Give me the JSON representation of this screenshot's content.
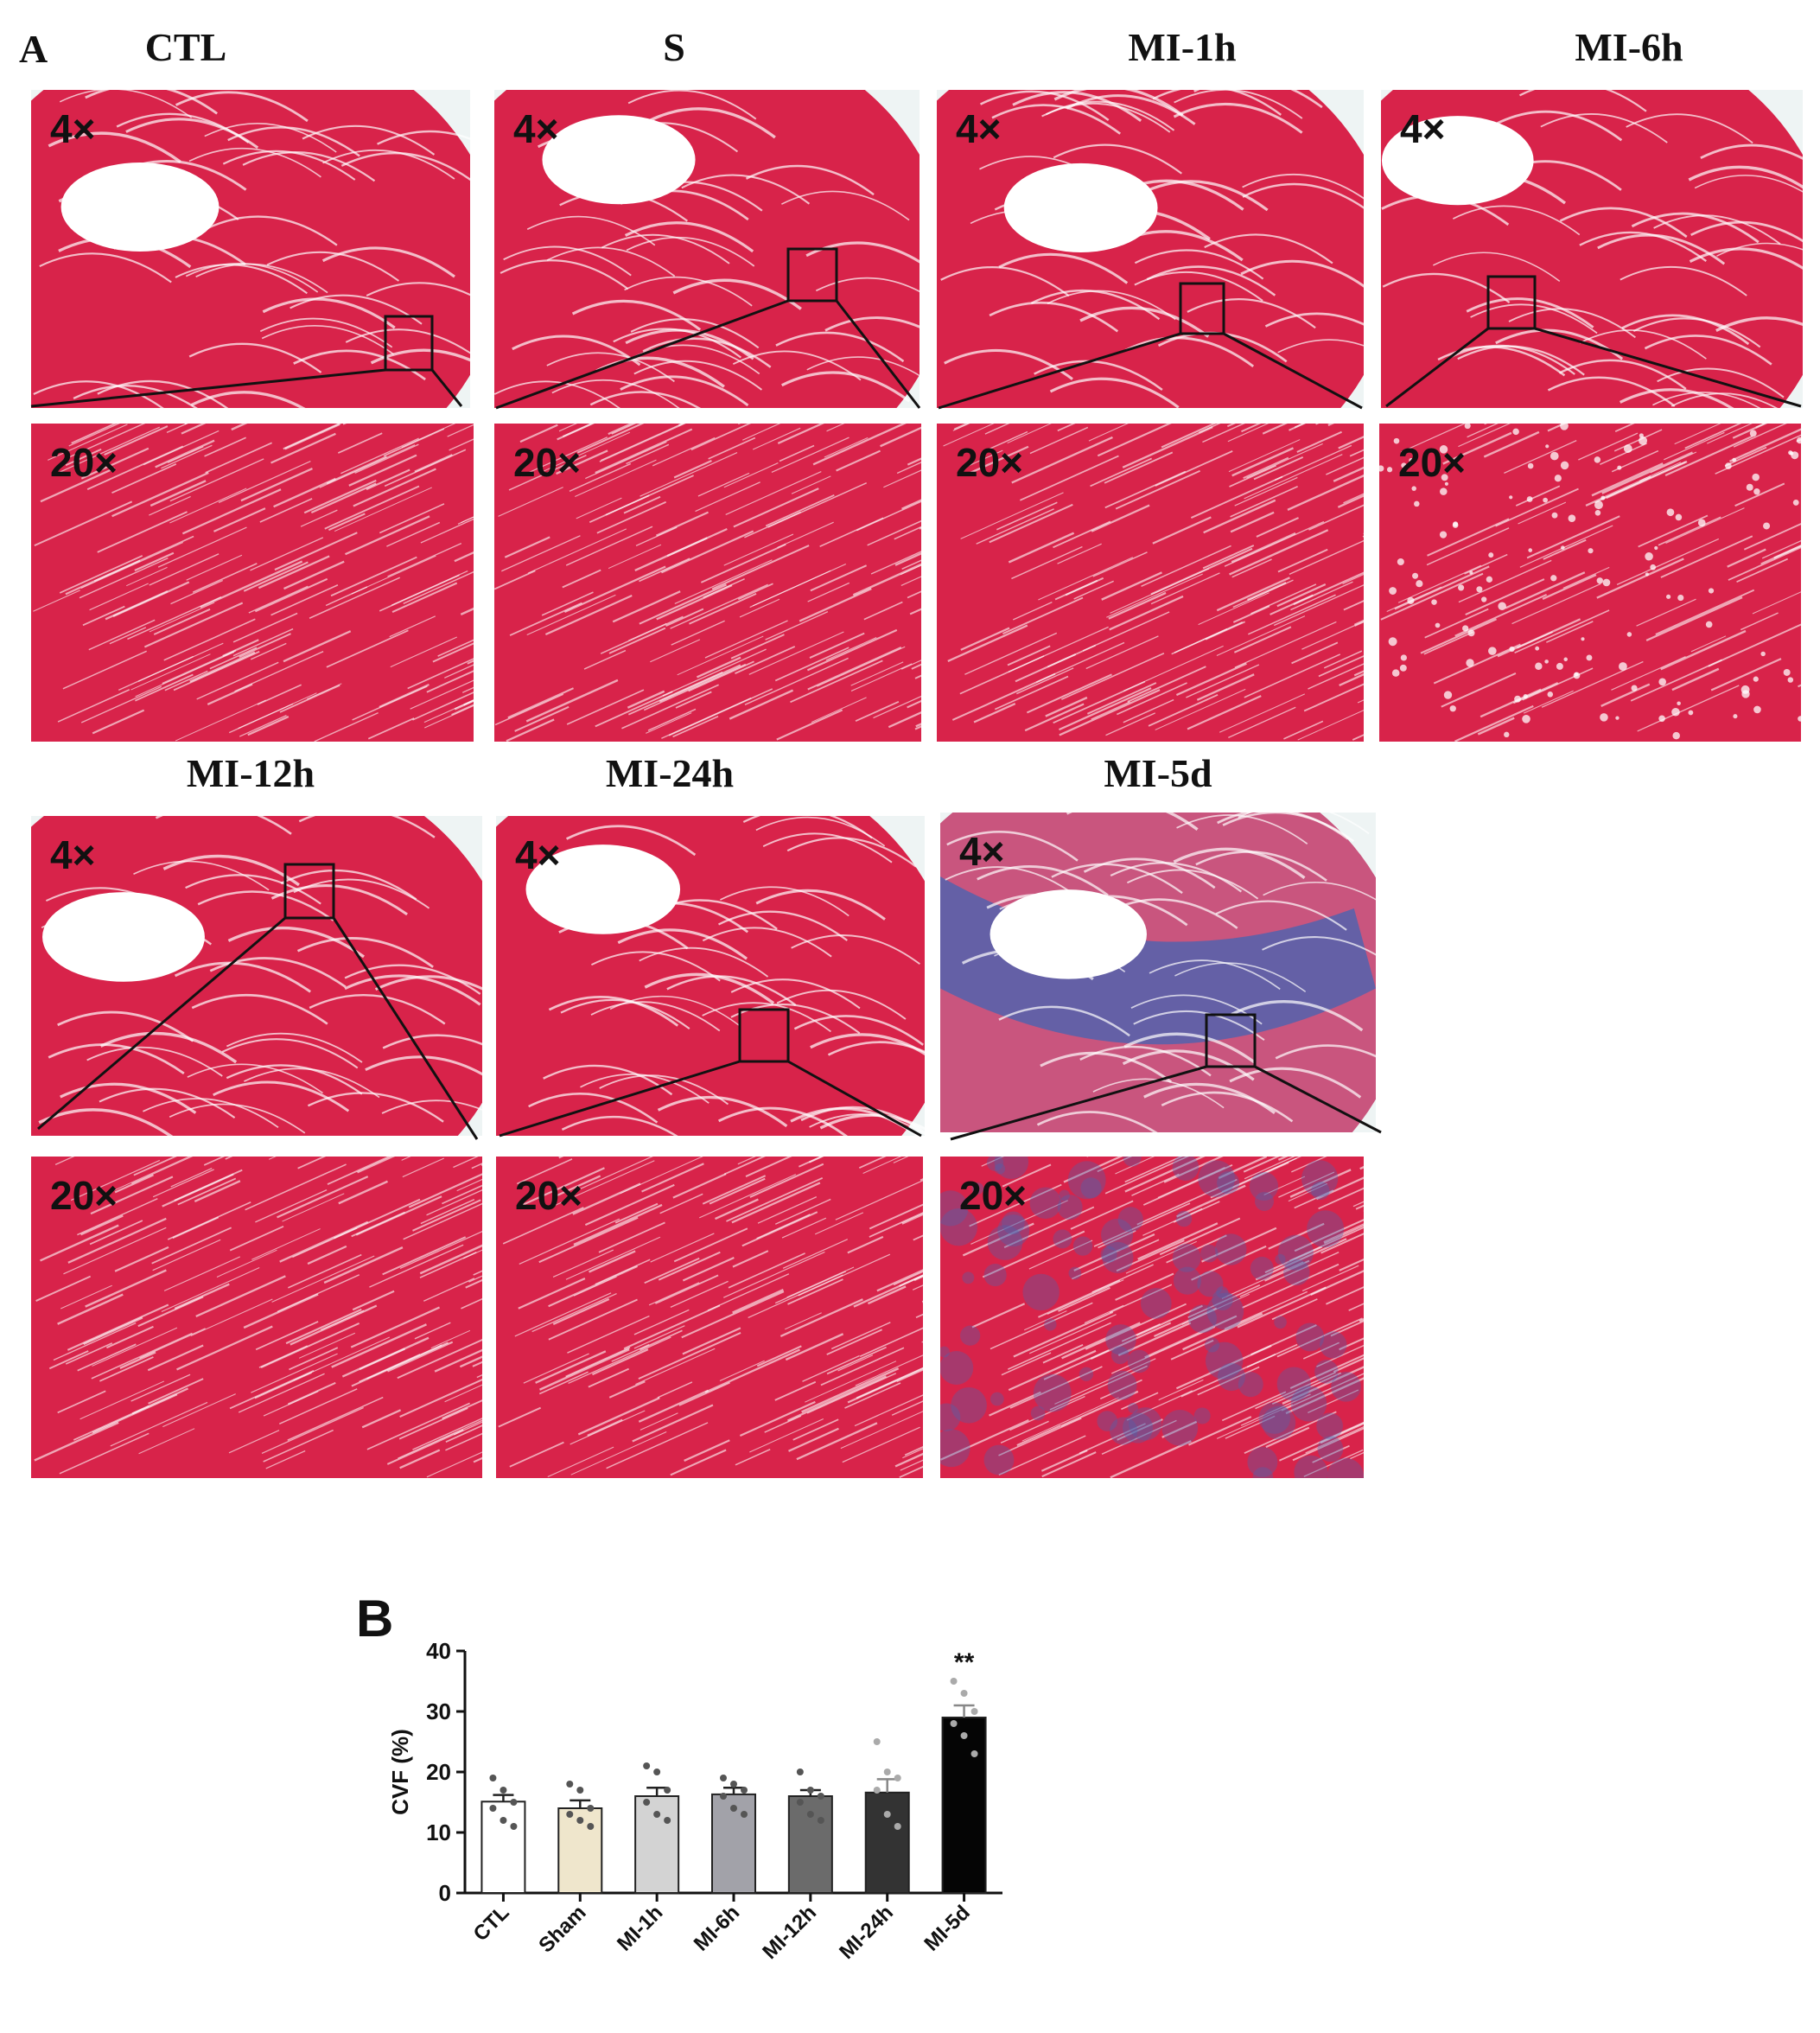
{
  "panel_a_label": "A",
  "panel_b_label": "B",
  "groups": [
    {
      "title": "CTL",
      "low_mag": "4×",
      "high_mag": "20×",
      "tissue": "normal"
    },
    {
      "title": "S",
      "low_mag": "4×",
      "high_mag": "20×",
      "tissue": "normal"
    },
    {
      "title": "MI-1h",
      "low_mag": "4×",
      "high_mag": "20×",
      "tissue": "normal"
    },
    {
      "title": "MI-6h",
      "low_mag": "4×",
      "high_mag": "20×",
      "tissue": "disordered"
    },
    {
      "title": "MI-12h",
      "low_mag": "4×",
      "high_mag": "20×",
      "tissue": "normal"
    },
    {
      "title": "MI-24h",
      "low_mag": "4×",
      "high_mag": "20×",
      "tissue": "normal"
    },
    {
      "title": "MI-5d",
      "low_mag": "4×",
      "high_mag": "20×",
      "tissue": "fibrotic"
    }
  ],
  "colors": {
    "myocardium": "#d8234a",
    "myocardium_light": "#f2a6b6",
    "collagen": "#4b63b0",
    "background": "#eef4f4"
  },
  "chart_data": {
    "type": "bar",
    "categories": [
      "CTL",
      "Sham",
      "MI-1h",
      "MI-6h",
      "MI-12h",
      "MI-24h",
      "MI-5d"
    ],
    "values": [
      15.1,
      14.0,
      16.0,
      16.3,
      16.0,
      16.6,
      29.0
    ],
    "errors": [
      1.1,
      1.3,
      1.4,
      1.1,
      1.0,
      2.2,
      2.0
    ],
    "points": [
      [
        19,
        17,
        15,
        14,
        12,
        11
      ],
      [
        18,
        17,
        14,
        13,
        12,
        11
      ],
      [
        21,
        20,
        17,
        15,
        13,
        12
      ],
      [
        19,
        18,
        17,
        16,
        14,
        13
      ],
      [
        20,
        17,
        16,
        15,
        13,
        12
      ],
      [
        25,
        20,
        19,
        17,
        13,
        11
      ],
      [
        35,
        33,
        30,
        28,
        26,
        23
      ]
    ],
    "bar_colors": [
      "#ffffff",
      "#efe6cc",
      "#d3d3d3",
      "#a2a2a9",
      "#6b6b6b",
      "#333333",
      "#050505"
    ],
    "ylabel": "CVF (%)",
    "ylim": [
      0,
      40
    ],
    "yticks": [
      "0",
      "10",
      "20",
      "30",
      "40"
    ],
    "significance": [
      "",
      "",
      "",
      "",
      "",
      "",
      "**"
    ]
  }
}
